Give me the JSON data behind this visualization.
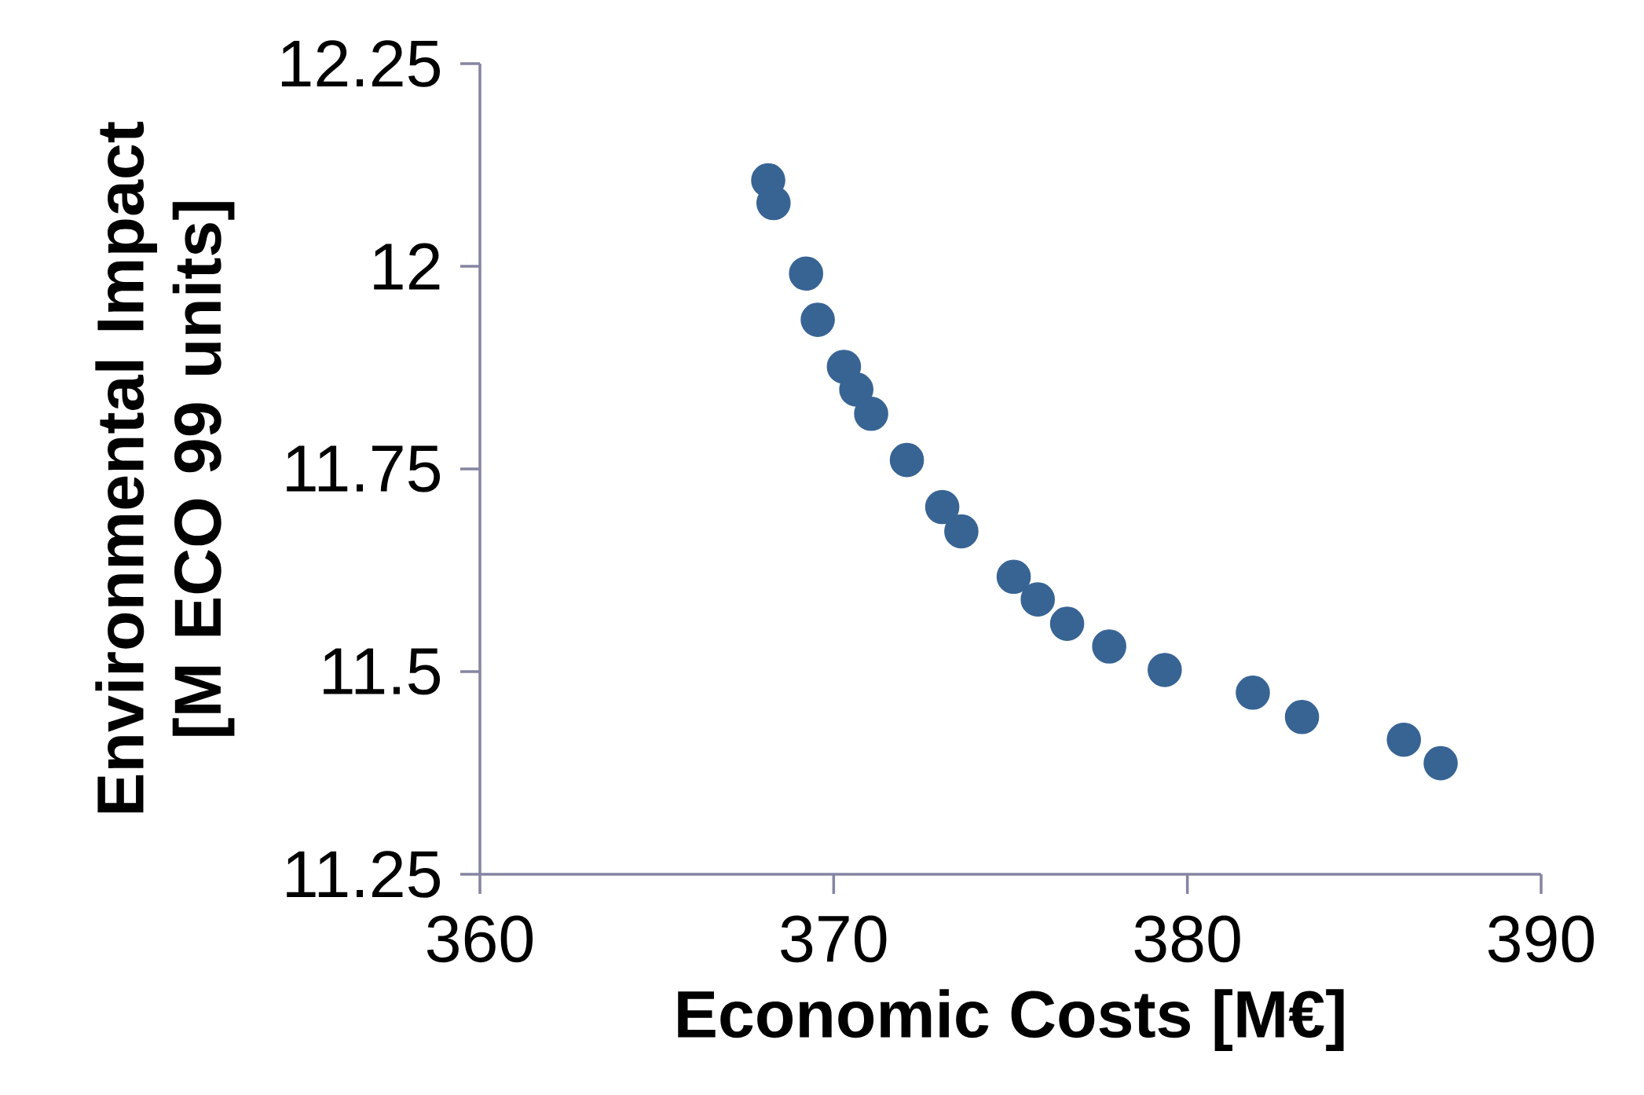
{
  "chart_data": {
    "type": "scatter",
    "xlabel": "Economic Costs [M€]",
    "ylabel": "Environmental Impact [M ECO 99 units]",
    "xlim": [
      360,
      390
    ],
    "xticks": [
      360,
      370,
      380,
      390
    ],
    "ylim": [
      11.25,
      12.25
    ],
    "yticks": [
      11.25,
      11.5,
      11.75,
      12,
      12.25
    ],
    "marker": "circle",
    "x": [
      368.15,
      368.3,
      369.22,
      369.55,
      370.29,
      370.64,
      371.06,
      372.07,
      373.07,
      373.61,
      375.09,
      375.77,
      376.6,
      377.79,
      379.36,
      381.85,
      383.24,
      386.12,
      387.16
    ],
    "series": [
      {
        "color": "#386494",
        "values": [
          12.106,
          12.078,
          11.991,
          11.934,
          11.876,
          11.848,
          11.818,
          11.761,
          11.703,
          11.673,
          11.617,
          11.589,
          11.559,
          11.531,
          11.502,
          11.474,
          11.444,
          11.416,
          11.387
        ]
      }
    ]
  }
}
